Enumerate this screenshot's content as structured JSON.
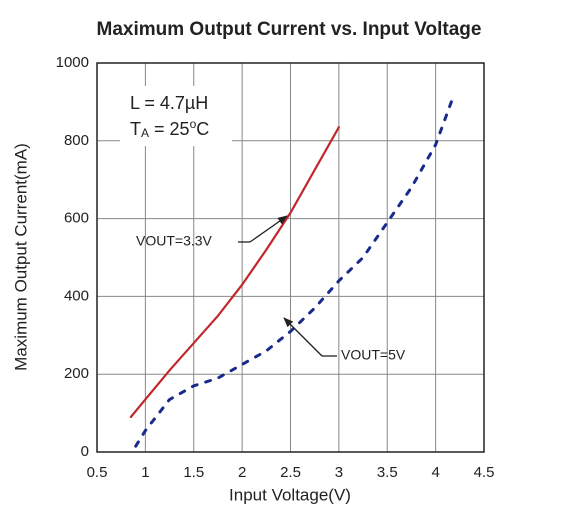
{
  "chart_data": {
    "type": "line",
    "title": "Maximum Output Current vs. Input Voltage",
    "xlabel": "Input Voltage(V)",
    "ylabel": "Maximum Output Current(mA)",
    "xlim": [
      0.5,
      4.5
    ],
    "xticks": [
      0.5,
      1,
      1.5,
      2,
      2.5,
      3,
      3.5,
      4,
      4.5
    ],
    "ylim": [
      0,
      1000
    ],
    "yticks": [
      0,
      200,
      400,
      600,
      800,
      1000
    ],
    "grid": true,
    "annotations": [
      {
        "parts": [
          {
            "text": "L = 4.7µH",
            "shift": "base"
          }
        ]
      },
      {
        "parts": [
          {
            "text": "T",
            "shift": "base"
          },
          {
            "text": "A",
            "shift": "sub"
          },
          {
            "text": " = 25",
            "shift": "base"
          },
          {
            "text": "o",
            "shift": "sup"
          },
          {
            "text": "C",
            "shift": "base"
          }
        ]
      }
    ],
    "series": [
      {
        "name": "VOUT=3.3V",
        "color": "#c0282d",
        "dashed": false,
        "x": [
          0.85,
          1,
          1.25,
          1.5,
          1.75,
          2,
          2.25,
          2.5,
          2.75,
          3
        ],
        "values": [
          90,
          135,
          210,
          280,
          350,
          430,
          520,
          615,
          725,
          835
        ]
      },
      {
        "name": "VOUT=5V",
        "color": "#1a2a8c",
        "dashed": true,
        "x": [
          0.9,
          1,
          1.25,
          1.5,
          1.75,
          2,
          2.25,
          2.5,
          2.75,
          3,
          3.25,
          3.5,
          3.75,
          4,
          4.18
        ],
        "values": [
          15,
          55,
          135,
          170,
          190,
          225,
          260,
          310,
          370,
          440,
          500,
          590,
          680,
          790,
          912
        ]
      }
    ]
  }
}
